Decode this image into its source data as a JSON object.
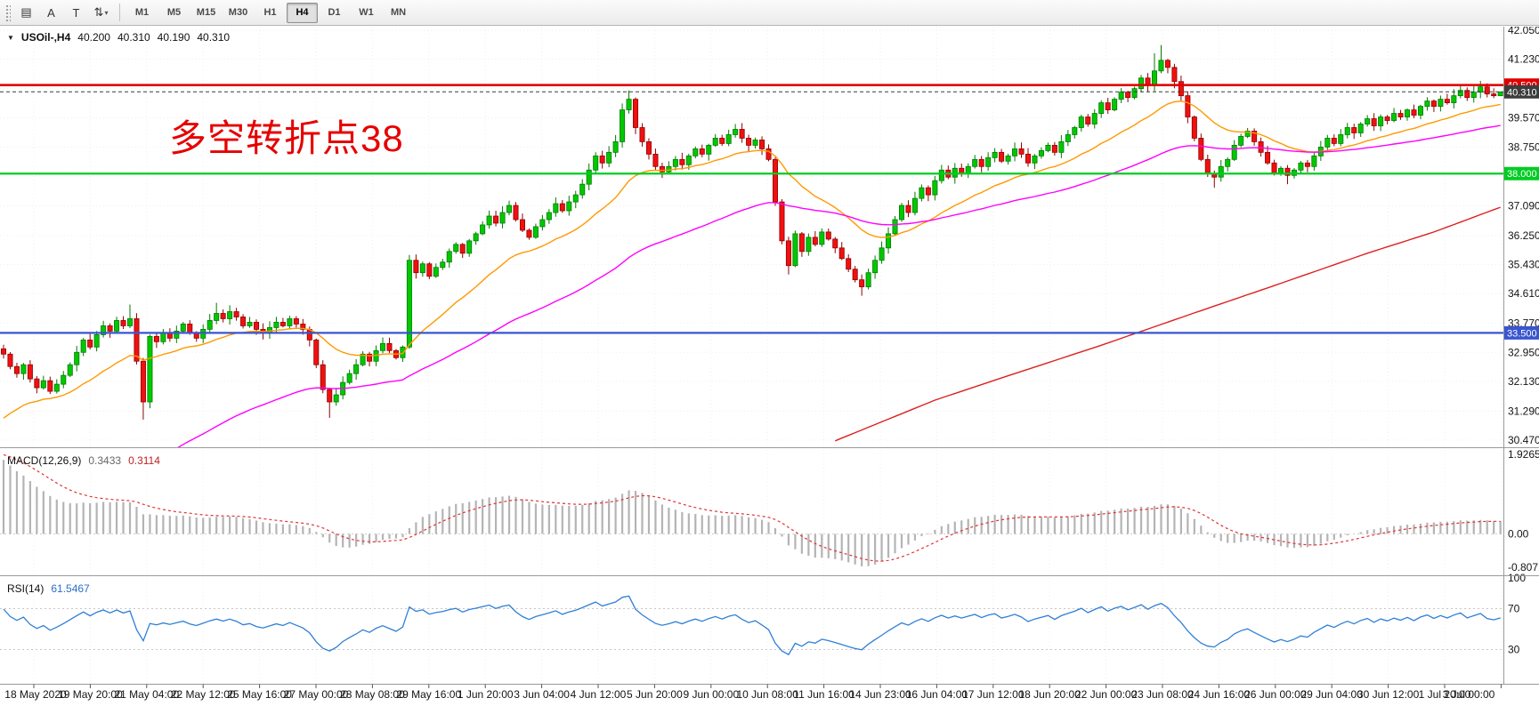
{
  "toolbar": {
    "tools": [
      {
        "name": "chart-menu",
        "glyph": "▤"
      },
      {
        "name": "annotate-a",
        "glyph": "A"
      },
      {
        "name": "text",
        "glyph": "T"
      },
      {
        "name": "cycle",
        "glyph": "⇅",
        "caret": "▾"
      }
    ],
    "timeframes": [
      {
        "label": "M1"
      },
      {
        "label": "M5"
      },
      {
        "label": "M15"
      },
      {
        "label": "M30"
      },
      {
        "label": "H1"
      },
      {
        "label": "H4",
        "active": true
      },
      {
        "label": "D1"
      },
      {
        "label": "W1"
      },
      {
        "label": "MN"
      }
    ]
  },
  "chart": {
    "symbol_line": {
      "expander": "▼",
      "symbol": "USOil-,H4",
      "open": "40.200",
      "high": "40.310",
      "low": "40.190",
      "close": "40.310"
    },
    "annotation": {
      "text": "多空转折点38",
      "color": "#e60000"
    },
    "macd_label": {
      "title": "MACD(12,26,9)",
      "main": "0.3433",
      "signal": "0.3114"
    },
    "rsi_label": {
      "title": "RSI(14)",
      "value": "61.5467"
    }
  },
  "chart_data": {
    "type": "candlestick",
    "symbol": "USOil-",
    "timeframe": "H4",
    "ohlc_current": {
      "open": 40.2,
      "high": 40.31,
      "low": 40.19,
      "close": 40.31
    },
    "colors": {
      "bull": "#00c800",
      "bull_border": "#007a00",
      "bear": "#f01010",
      "bear_border": "#900000",
      "grid": "#efefef",
      "axis_text": "#141414",
      "separator": "#9a9a9a",
      "background": "#ffffff"
    },
    "closes": [
      32.9,
      32.55,
      32.35,
      32.6,
      32.2,
      31.95,
      32.15,
      31.85,
      32.05,
      32.3,
      32.6,
      32.95,
      33.3,
      33.1,
      33.45,
      33.7,
      33.55,
      33.85,
      33.7,
      33.9,
      32.7,
      31.55,
      33.4,
      33.25,
      33.5,
      33.35,
      33.55,
      33.75,
      33.5,
      33.35,
      33.6,
      33.85,
      34.05,
      33.9,
      34.1,
      33.95,
      33.7,
      33.8,
      33.6,
      33.5,
      33.65,
      33.8,
      33.7,
      33.9,
      33.75,
      33.6,
      33.3,
      32.6,
      31.9,
      31.55,
      31.75,
      32.1,
      32.35,
      32.6,
      32.9,
      32.7,
      33.0,
      33.2,
      33.0,
      32.8,
      33.1,
      35.55,
      35.2,
      35.45,
      35.1,
      35.35,
      35.5,
      35.8,
      36.0,
      35.75,
      36.1,
      36.3,
      36.55,
      36.8,
      36.6,
      36.9,
      37.1,
      36.7,
      36.4,
      36.2,
      36.5,
      36.7,
      36.9,
      37.15,
      36.95,
      37.2,
      37.4,
      37.7,
      38.1,
      38.5,
      38.3,
      38.6,
      38.9,
      39.8,
      40.1,
      39.3,
      38.9,
      38.55,
      38.2,
      38.05,
      38.2,
      38.4,
      38.25,
      38.5,
      38.7,
      38.55,
      38.8,
      39.0,
      38.85,
      39.1,
      39.25,
      39.0,
      38.8,
      38.95,
      38.7,
      38.4,
      37.2,
      36.1,
      35.4,
      36.3,
      35.8,
      36.2,
      36.0,
      36.35,
      36.15,
      35.9,
      35.6,
      35.3,
      35.0,
      34.8,
      35.2,
      35.55,
      35.9,
      36.3,
      36.7,
      37.1,
      36.9,
      37.3,
      37.6,
      37.4,
      37.8,
      38.1,
      37.9,
      38.15,
      38.0,
      38.2,
      38.4,
      38.2,
      38.45,
      38.6,
      38.35,
      38.5,
      38.7,
      38.55,
      38.3,
      38.5,
      38.65,
      38.8,
      38.6,
      38.9,
      39.1,
      39.3,
      39.6,
      39.4,
      39.7,
      40.0,
      39.8,
      40.1,
      40.3,
      40.15,
      40.4,
      40.7,
      40.5,
      40.9,
      41.2,
      41.0,
      40.6,
      40.2,
      39.6,
      39.0,
      38.4,
      38.0,
      37.9,
      38.2,
      38.4,
      38.8,
      39.05,
      39.2,
      38.9,
      38.6,
      38.3,
      38.0,
      38.15,
      37.95,
      38.1,
      38.3,
      38.2,
      38.5,
      38.75,
      39.0,
      38.85,
      39.1,
      39.3,
      39.15,
      39.4,
      39.55,
      39.35,
      39.6,
      39.5,
      39.7,
      39.6,
      39.8,
      39.65,
      39.9,
      40.05,
      39.9,
      40.1,
      40.0,
      40.2,
      40.35,
      40.15,
      40.3,
      40.45,
      40.25,
      40.2,
      40.31
    ],
    "key_wicks": {
      "19": {
        "h": 34.3
      },
      "21": {
        "l": 31.05
      },
      "32": {
        "h": 34.35
      },
      "34": {
        "h": 34.28
      },
      "49": {
        "l": 31.1
      },
      "61": {
        "l": 33.05,
        "h": 35.7
      },
      "93": {
        "h": 39.98
      },
      "94": {
        "h": 40.35
      },
      "118": {
        "l": 35.15
      },
      "129": {
        "l": 34.55
      },
      "173": {
        "h": 41.4
      },
      "174": {
        "h": 41.63
      },
      "176": {
        "h": 41.1
      },
      "182": {
        "l": 37.6
      },
      "193": {
        "l": 37.7
      },
      "222": {
        "h": 40.62
      },
      "225": {
        "h": 40.31,
        "l": 40.19
      }
    },
    "price_axis": {
      "top_value": 42.05,
      "bottom_value": 30.47,
      "ticks": [
        {
          "v": 42.05,
          "label": "42.050"
        },
        {
          "v": 41.23,
          "label": "41.230"
        },
        {
          "v": 40.41,
          "label": "40.410"
        },
        {
          "v": 39.57,
          "label": "39.570"
        },
        {
          "v": 38.75,
          "label": "38.750"
        },
        {
          "v": 37.93,
          "label": "37.930"
        },
        {
          "v": 37.09,
          "label": "37.090"
        },
        {
          "v": 36.25,
          "label": "36.250"
        },
        {
          "v": 35.43,
          "label": "35.430"
        },
        {
          "v": 34.61,
          "label": "34.610"
        },
        {
          "v": 33.77,
          "label": "33.770"
        },
        {
          "v": 32.95,
          "label": "32.950"
        },
        {
          "v": 32.13,
          "label": "32.130"
        },
        {
          "v": 31.29,
          "label": "31.290"
        },
        {
          "v": 30.47,
          "label": "30.470"
        }
      ]
    },
    "horizontal_lines": [
      {
        "price": 40.5,
        "color": "#e00000",
        "width": 2.6,
        "dash": false,
        "badge": "40.500"
      },
      {
        "price": 40.31,
        "color": "#3c3c3c",
        "width": 1,
        "dash": true,
        "badge": "40.310"
      },
      {
        "price": 38.0,
        "color": "#00cc22",
        "width": 2.2,
        "dash": false,
        "badge": "38.000"
      },
      {
        "price": 33.5,
        "color": "#3a55cf",
        "width": 2.2,
        "dash": false,
        "badge": "33.500"
      }
    ],
    "moving_averages": [
      {
        "name": "ma-fast",
        "type": "ema",
        "period": 20,
        "seed": 30.9,
        "color": "#ff9900",
        "width": 1.4
      },
      {
        "name": "ma-medium",
        "type": "ema",
        "period": 60,
        "seed": 26.2,
        "color": "#ff00ff",
        "width": 1.4
      },
      {
        "name": "ma-slow",
        "type": "waypoints",
        "color": "#dd2020",
        "width": 1.4,
        "points": [
          [
            125,
            30.45
          ],
          [
            140,
            31.6
          ],
          [
            152,
            32.35
          ],
          [
            165,
            33.15
          ],
          [
            178,
            34.0
          ],
          [
            192,
            34.9
          ],
          [
            205,
            35.75
          ],
          [
            215,
            36.35
          ],
          [
            225,
            37.05
          ]
        ]
      }
    ],
    "macd": {
      "fast": 12,
      "slow": 26,
      "signal_period": 9,
      "current_main": 0.3433,
      "current_signal": 0.3114,
      "ema_fast_seed": 32.5,
      "ema_slow_seed": 30.6,
      "signal_seed": 1.95,
      "scale": {
        "max": 1.9265,
        "min": -0.8071
      },
      "scale_labels": [
        {
          "v": 1.9265,
          "t": "1.9265"
        },
        {
          "v": 0,
          "t": "0.00"
        },
        {
          "v": -0.8071,
          "t": "-0.8071"
        }
      ],
      "colors": {
        "hist": "#b4b4b4",
        "signal": "#e03232"
      }
    },
    "rsi": {
      "period": 14,
      "current_value": 61.5467,
      "color": "#2e7fd6",
      "levels": [
        70,
        30
      ],
      "avg_gain_seed": 0.16,
      "avg_loss_seed": 0.07,
      "scale_labels": [
        {
          "v": 100,
          "t": "100"
        },
        {
          "v": 70,
          "t": "70"
        },
        {
          "v": 30,
          "t": "30"
        }
      ]
    },
    "time_axis": {
      "labels": [
        "18 May 2020",
        "19 May 20:00",
        "21 May 04:00",
        "22 May 12:00",
        "25 May 16:00",
        "27 May 00:00",
        "28 May 08:00",
        "29 May 16:00",
        "1 Jun 20:00",
        "3 Jun 04:00",
        "4 Jun 12:00",
        "5 Jun 20:00",
        "9 Jun 00:00",
        "10 Jun 08:00",
        "11 Jun 16:00",
        "14 Jun 23:00",
        "16 Jun 04:00",
        "17 Jun 12:00",
        "18 Jun 20:00",
        "22 Jun 00:00",
        "23 Jun 08:00",
        "24 Jun 16:00",
        "26 Jun 00:00",
        "29 Jun 04:00",
        "30 Jun 12:00",
        "1 Jul 20:00",
        "3 Jul 00:00"
      ]
    }
  }
}
